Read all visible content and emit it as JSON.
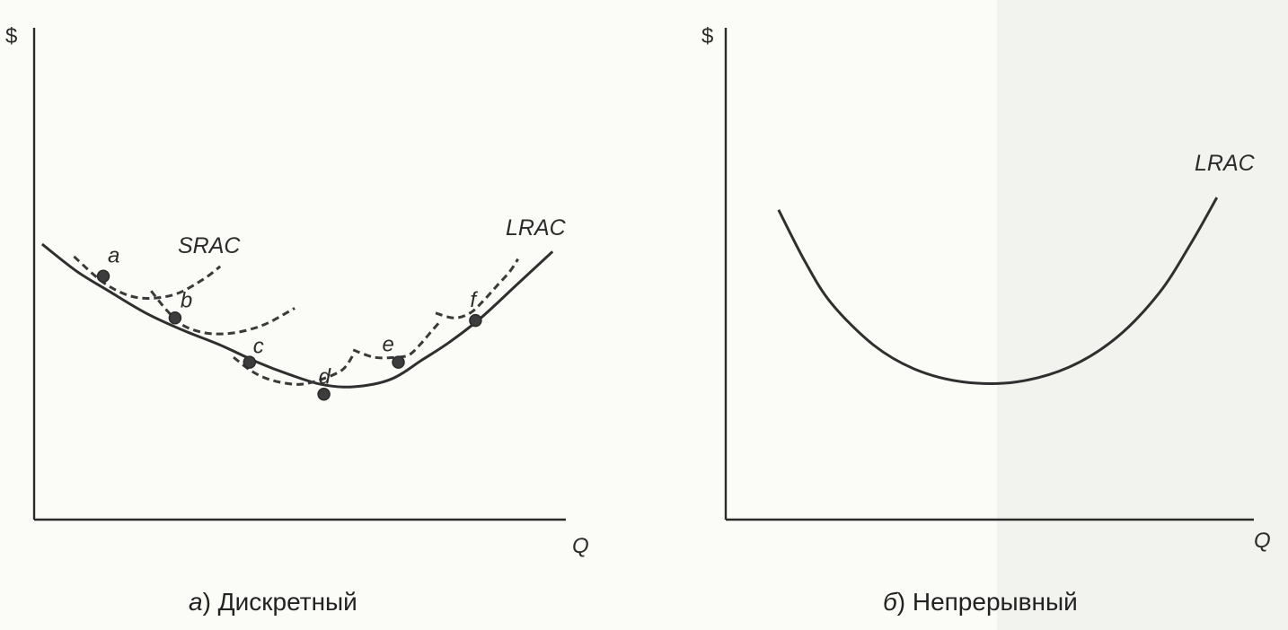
{
  "figure": {
    "background": "#fbfbf7",
    "ink": "#2b2b2b"
  },
  "chart_data": [
    {
      "type": "line",
      "variant": "discrete",
      "caption_letter": "а",
      "caption_text": ") Дискретный",
      "y_axis_label": "$",
      "x_axis_label": "Q",
      "long_run_curve_label": "LRAC",
      "short_run_curve_label": "SRAC",
      "xlim": [
        0,
        10
      ],
      "ylim": [
        0,
        10
      ],
      "series": [
        {
          "name": "LRAC",
          "style": "solid",
          "x": [
            0.15,
            0.8,
            1.4,
            2.1,
            2.8,
            3.5,
            4.2,
            4.8,
            5.4,
            6.0,
            6.7,
            7.3,
            7.8,
            8.4,
            9.1,
            9.75
          ],
          "y": [
            5.6,
            5.05,
            4.65,
            4.2,
            3.85,
            3.55,
            3.2,
            2.95,
            2.75,
            2.7,
            2.85,
            3.25,
            3.6,
            4.1,
            4.8,
            5.45
          ]
        }
      ],
      "short_run_curves": [
        {
          "point": "a",
          "style": "dashed",
          "x": [
            0.75,
            1.1,
            1.4,
            1.8,
            2.2,
            2.7,
            3.2,
            3.5
          ],
          "y": [
            5.35,
            5.0,
            4.75,
            4.55,
            4.5,
            4.6,
            4.9,
            5.15
          ]
        },
        {
          "point": "b",
          "style": "dashed",
          "x": [
            2.2,
            2.5,
            2.8,
            3.2,
            3.6,
            4.0,
            4.4,
            4.9
          ],
          "y": [
            4.65,
            4.25,
            3.95,
            3.8,
            3.78,
            3.85,
            4.0,
            4.3
          ]
        },
        {
          "point": "c",
          "style": "dashed",
          "x": [
            3.75,
            4.05,
            4.3,
            4.6,
            5.0,
            5.4,
            5.8,
            6.0
          ],
          "y": [
            3.3,
            3.05,
            2.9,
            2.8,
            2.75,
            2.85,
            3.05,
            3.35
          ]
        },
        {
          "point": "e",
          "style": "dashed",
          "x": [
            6.0,
            6.4,
            6.8,
            7.05,
            7.25,
            7.45,
            7.65
          ],
          "y": [
            3.45,
            3.3,
            3.3,
            3.35,
            3.55,
            3.8,
            4.05
          ]
        },
        {
          "point": "f",
          "style": "dashed",
          "x": [
            7.55,
            7.9,
            8.2,
            8.45,
            8.7,
            8.95,
            9.1
          ],
          "y": [
            4.2,
            4.1,
            4.2,
            4.45,
            4.75,
            5.05,
            5.3
          ]
        }
      ],
      "tangent_points": [
        {
          "label": "a",
          "x": 1.3,
          "y": 4.95
        },
        {
          "label": "b",
          "x": 2.65,
          "y": 4.1
        },
        {
          "label": "c",
          "x": 4.05,
          "y": 3.2
        },
        {
          "label": "d",
          "x": 5.45,
          "y": 2.55
        },
        {
          "label": "e",
          "x": 6.85,
          "y": 3.2
        },
        {
          "label": "f",
          "x": 8.3,
          "y": 4.05
        }
      ]
    },
    {
      "type": "line",
      "variant": "continuous",
      "caption_letter": "б",
      "caption_text": ") Непрерывный",
      "y_axis_label": "$",
      "x_axis_label": "Q",
      "long_run_curve_label": "LRAC",
      "xlim": [
        0,
        10
      ],
      "ylim": [
        0,
        10
      ],
      "series": [
        {
          "name": "LRAC",
          "style": "solid",
          "x": [
            1.0,
            1.5,
            2.0,
            2.8,
            3.6,
            4.5,
            5.5,
            6.5,
            7.4,
            8.2,
            8.8,
            9.3
          ],
          "y": [
            6.3,
            5.25,
            4.4,
            3.55,
            3.05,
            2.8,
            2.8,
            3.1,
            3.7,
            4.6,
            5.6,
            6.55
          ]
        }
      ]
    }
  ]
}
